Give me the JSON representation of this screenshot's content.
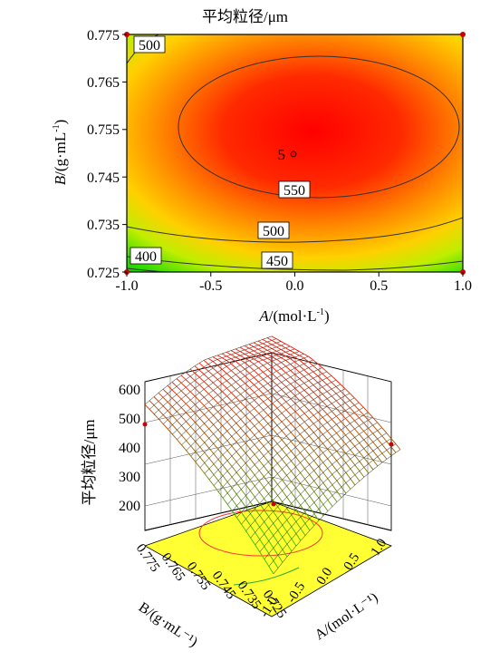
{
  "chart_data": [
    {
      "type": "contour",
      "title": "平均粒径/μm",
      "xlabel_var": "A",
      "xlabel_unit": "/(mol·L",
      "xlabel_sup": "-1",
      "xlabel_close": ")",
      "ylabel_var": "B",
      "ylabel_unit": "/(g·mL",
      "ylabel_sup": "-1",
      "ylabel_close": ")",
      "xlim": [
        -1.0,
        1.0
      ],
      "ylim": [
        0.725,
        0.775
      ],
      "x_ticks": [
        -1.0,
        -0.5,
        0.0,
        0.5,
        1.0
      ],
      "x_tick_labels": [
        "-1.0",
        "-0.5",
        "0.0",
        "0.5",
        "1.0"
      ],
      "y_ticks": [
        0.725,
        0.735,
        0.745,
        0.755,
        0.765,
        0.775
      ],
      "y_tick_labels": [
        "0.725",
        "0.735",
        "0.745",
        "0.755",
        "0.765",
        "0.775"
      ],
      "contours": [
        {
          "level": 550,
          "label": "550",
          "cx": 0.16,
          "cy": 0.7555,
          "rx": 0.71,
          "ry": 0.0155,
          "label_at": [
            0.0,
            0.7419
          ]
        },
        {
          "level": 500,
          "label": "500",
          "label_at": [
            -0.82,
            0.7724
          ],
          "label2_at": [
            -0.12,
            0.7335
          ]
        },
        {
          "level": 450,
          "label": "450",
          "label_at": [
            -0.12,
            0.7268
          ]
        },
        {
          "level": 400,
          "label": "400",
          "label_at": [
            -0.88,
            0.7274
          ]
        }
      ],
      "design_points": [
        {
          "x": -1.0,
          "y": 0.775
        },
        {
          "x": 1.0,
          "y": 0.775
        },
        {
          "x": -1.0,
          "y": 0.725
        },
        {
          "x": 1.0,
          "y": 0.725
        }
      ],
      "center_point": {
        "x": -0.08,
        "y": 0.75,
        "label": "5"
      },
      "colors": {
        "high": "#ff0000",
        "mid": "#ffcc00",
        "low": "#00dd00"
      }
    },
    {
      "type": "surface3d",
      "zlabel": "平均粒径/μm",
      "xlabel": "A/(mol·L⁻¹)",
      "ylabel": "B/(g·mL⁻¹)",
      "z_ticks": [
        200,
        300,
        400,
        500,
        600
      ],
      "z_tick_labels": [
        "200",
        "300",
        "400",
        "500",
        "600"
      ],
      "zlim": [
        200,
        650
      ],
      "a_ticks": [
        -1.0,
        -0.5,
        0.0,
        0.5,
        1.0
      ],
      "a_tick_labels": [
        "-1.0",
        "-0.5",
        "0.0",
        "0.5",
        "1.0"
      ],
      "b_ticks": [
        0.775,
        0.765,
        0.755,
        0.745,
        0.735,
        0.725
      ],
      "b_tick_labels": [
        "0.775",
        "0.765",
        "0.755",
        "0.745",
        "0.735",
        "0.725"
      ],
      "corner_values": [
        {
          "a": -1.0,
          "b": 0.775,
          "z": 480
        },
        {
          "a": 1.0,
          "b": 0.775,
          "z": 560
        },
        {
          "a": 1.0,
          "b": 0.725,
          "z": 440
        },
        {
          "a": -1.0,
          "b": 0.725,
          "z": 210
        }
      ],
      "peak": {
        "a": 0.1,
        "b": 0.756,
        "z": 590
      },
      "floor_color": "#ffff33",
      "floor_contour_color": "#ff3333"
    }
  ]
}
